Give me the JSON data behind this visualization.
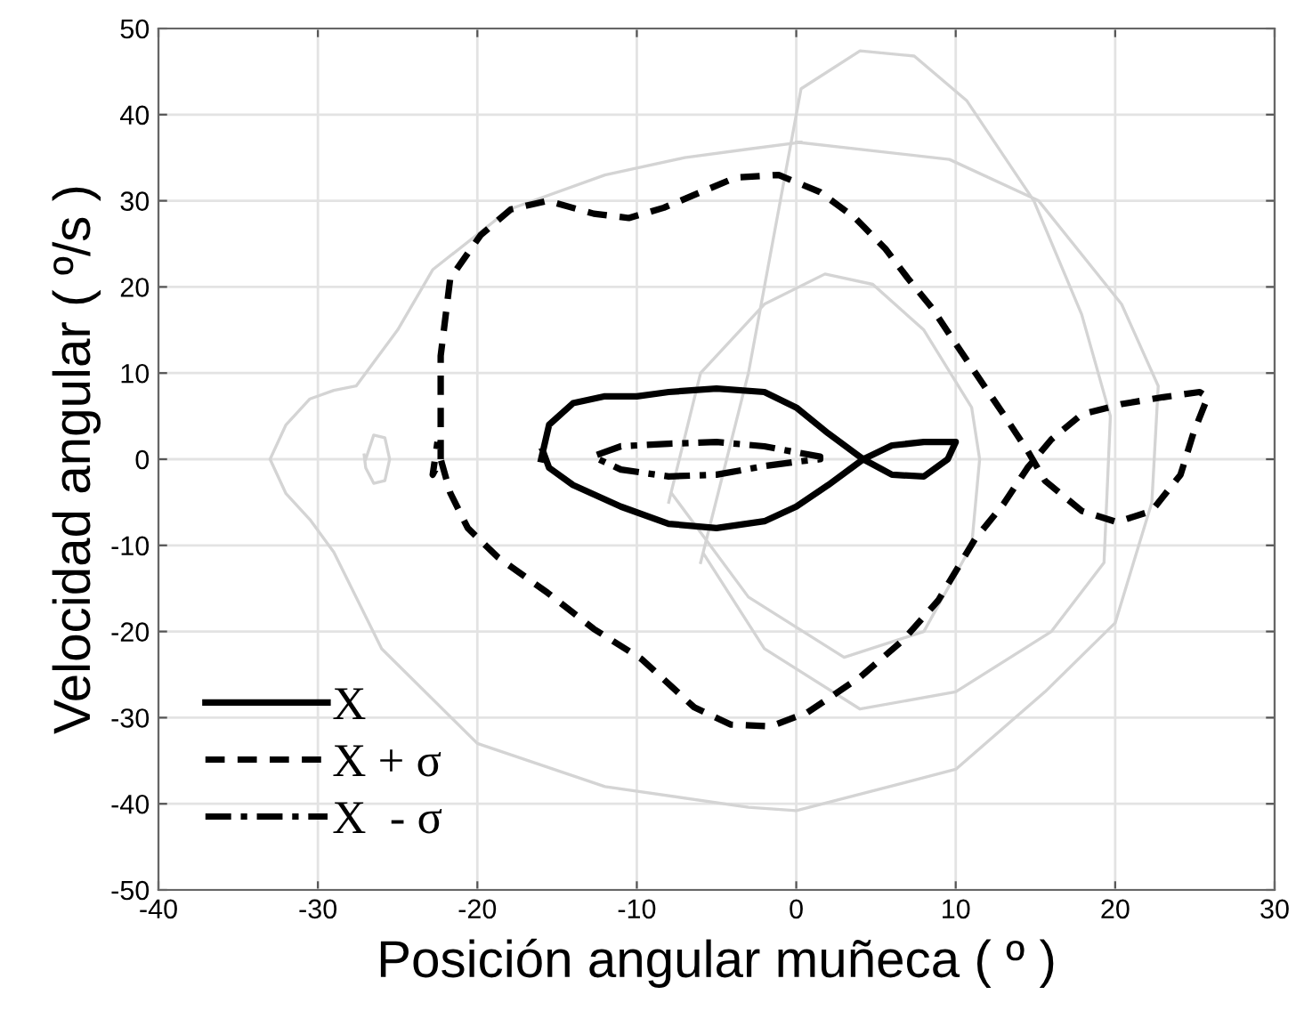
{
  "chart_data": {
    "type": "line",
    "xlabel": "Posición angular muñeca ( º )",
    "ylabel": "Velocidad angular ( º/s )",
    "xlim": [
      -40,
      30
    ],
    "ylim": [
      -50,
      50
    ],
    "xticks": [
      -40,
      -30,
      -20,
      -10,
      0,
      10,
      20,
      30
    ],
    "yticks": [
      -50,
      -40,
      -30,
      -20,
      -10,
      0,
      10,
      20,
      30,
      40,
      50
    ],
    "grid": true,
    "legend": "bottom left",
    "series": [
      {
        "color": "#d4d4d4",
        "line_style": "solid",
        "x": [
          0,
          9.6,
          15.2,
          20.4,
          22.7,
          22.3,
          20,
          15.6,
          10,
          0,
          -3,
          -12,
          -20,
          -26,
          -29,
          -30.5,
          -32,
          -33,
          -32,
          -30.5,
          -29,
          -27.6,
          -25,
          -22.8,
          -18,
          -12,
          -7,
          -3,
          0.3
        ],
        "values": [
          36.8,
          34.8,
          30,
          18,
          8.5,
          -5,
          -19,
          -27,
          -36,
          -40.8,
          -40.4,
          -38,
          -33,
          -22,
          -10.8,
          -7,
          -4,
          0,
          4,
          7,
          8,
          8.5,
          15,
          22,
          29,
          33,
          35,
          36,
          36.8
        ]
      },
      {
        "color": "#d4d4d4",
        "line_style": "solid",
        "x": [
          -6,
          -3,
          -1,
          0.3,
          4,
          7.4,
          10.7,
          14.9,
          17.9,
          19.7,
          19.3,
          16,
          10,
          4,
          -2,
          -5.8
        ],
        "values": [
          -12,
          10,
          30,
          43,
          47.4,
          46.8,
          41.6,
          30,
          16.8,
          5,
          -12,
          -20,
          -27,
          -29,
          -22,
          -11
        ]
      },
      {
        "color": "#d4d4d4",
        "line_style": "solid",
        "x": [
          -8,
          -6,
          -2,
          1.8,
          4.8,
          8,
          11,
          11.5,
          11,
          8,
          3,
          -3,
          -7.8
        ],
        "values": [
          -5,
          10,
          18,
          21.5,
          20.3,
          15,
          6,
          0,
          -10,
          -20,
          -23,
          -16,
          -4
        ]
      },
      {
        "color": "#d4d4d4",
        "line_style": "solid",
        "x": [
          -27,
          -26.5,
          -25.8,
          -25.5,
          -25.8,
          -26.5,
          -27,
          -27.1
        ],
        "values": [
          0,
          2.8,
          2.5,
          0,
          -2.5,
          -2.8,
          -1,
          0.5
        ]
      },
      {
        "name": "X",
        "color": "#000000",
        "line_style": "solid",
        "x": [
          -16,
          -15.5,
          -14,
          -12,
          -10,
          -8,
          -5,
          -2,
          0,
          2,
          4.2,
          6,
          8,
          10,
          9.5,
          8,
          6,
          4.2,
          2,
          0,
          -2,
          -5,
          -8,
          -11,
          -14,
          -15.5,
          -15.9
        ],
        "values": [
          0,
          4,
          6.5,
          7.3,
          7.3,
          7.8,
          8.2,
          7.8,
          6,
          3,
          0,
          1.6,
          2,
          2,
          0,
          -2,
          -1.8,
          0,
          -3,
          -5.5,
          -7.2,
          -8,
          -7.5,
          -5.5,
          -3,
          -1,
          1
        ]
      },
      {
        "name": "X + σ",
        "color": "#000000",
        "line_style": "dashed",
        "x": [
          -22.3,
          -22.3,
          -21.7,
          -19.8,
          -17.9,
          -15.6,
          -12.7,
          -10.5,
          -8.3,
          -3.8,
          -1.1,
          1.5,
          3.7,
          5.6,
          7,
          8.5,
          10,
          11.5,
          13,
          14.5,
          15.6,
          17.9,
          20.1,
          22.3,
          24.1,
          24.9,
          25.8,
          25.3,
          23,
          20.4,
          17.9,
          16,
          14.5,
          13,
          11.2,
          8.9,
          6.7,
          4,
          0.7,
          -1.6,
          -4.1,
          -6.4,
          -9.7,
          -12.7,
          -15.6,
          -18.7,
          -20.6,
          -21.7,
          -22.3,
          -22.8,
          -22.5
        ],
        "values": [
          0,
          12,
          21,
          26,
          29,
          30,
          28.5,
          28,
          29.2,
          32.7,
          33,
          31,
          28,
          24.4,
          21,
          17.6,
          13.4,
          9.3,
          5.2,
          1,
          -2.5,
          -6,
          -7.3,
          -6,
          -1.8,
          3,
          7.2,
          7.8,
          7.2,
          6.4,
          5.2,
          2.3,
          -1,
          -5.2,
          -9.3,
          -16.4,
          -21,
          -25.3,
          -29.4,
          -31,
          -30.8,
          -28.8,
          -23.2,
          -19.7,
          -15.5,
          -11.4,
          -8,
          -3.9,
          0,
          -1.8,
          2
        ]
      },
      {
        "name": "X  - σ",
        "color": "#000000",
        "line_style": "dashdot",
        "x": [
          -12.5,
          -11,
          -8,
          -5,
          -2,
          0,
          1.5,
          1.5,
          0,
          -2,
          -5,
          -8,
          -11,
          -12.4
        ],
        "values": [
          0.5,
          1.5,
          1.8,
          2,
          1.5,
          0.8,
          0.3,
          0,
          -0.3,
          -0.8,
          -1.8,
          -2,
          -1.2,
          0
        ]
      }
    ]
  }
}
